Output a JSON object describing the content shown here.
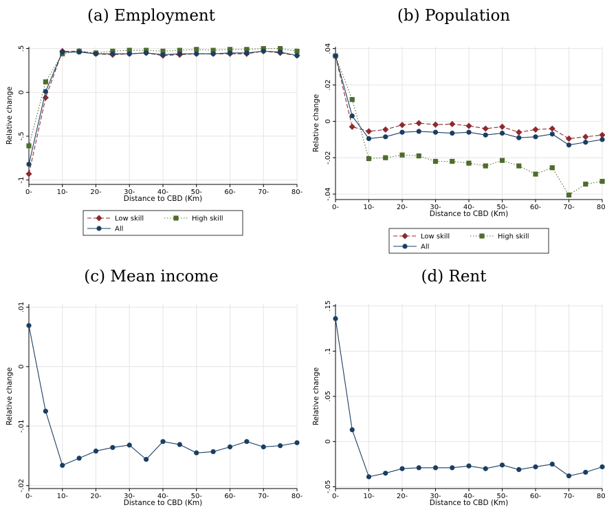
{
  "chart_data": [
    {
      "type": "line",
      "title": "(a) Employment",
      "xlabel": "Distance to CBD (Km)",
      "ylabel": "Relative change",
      "x": [
        0,
        5,
        10,
        15,
        20,
        25,
        30,
        35,
        40,
        45,
        50,
        55,
        60,
        65,
        70,
        75,
        80
      ],
      "xticks": [
        0,
        10,
        20,
        30,
        40,
        50,
        60,
        70,
        80
      ],
      "xtick_labels": [
        "0-",
        "10-",
        "20-",
        "30-",
        "40-",
        "50-",
        "60-",
        "70-",
        "80-"
      ],
      "xlim": [
        0,
        80
      ],
      "ylim": [
        -1.05,
        0.52
      ],
      "yticks": [
        0.5,
        0,
        -0.5,
        -1
      ],
      "ytick_labels": [
        ".5",
        "0",
        "-.5",
        "-1"
      ],
      "grid": true,
      "legend": "below",
      "series": [
        {
          "name": "Low skill",
          "color": "#8e2a2f",
          "marker": "diamond",
          "dash": "dash",
          "values": [
            -0.93,
            -0.06,
            0.47,
            0.47,
            0.44,
            0.43,
            0.44,
            0.45,
            0.42,
            0.43,
            0.44,
            0.44,
            0.44,
            0.44,
            0.47,
            0.45,
            0.42
          ]
        },
        {
          "name": "High skill",
          "color": "#4e6d2c",
          "marker": "square",
          "dash": "dot",
          "values": [
            -0.61,
            0.12,
            0.44,
            0.47,
            0.45,
            0.47,
            0.48,
            0.48,
            0.47,
            0.48,
            0.49,
            0.48,
            0.49,
            0.49,
            0.5,
            0.5,
            0.47
          ]
        },
        {
          "name": "All",
          "color": "#1a3e63",
          "marker": "circle",
          "dash": "solid",
          "values": [
            -0.82,
            0.01,
            0.46,
            0.46,
            0.44,
            0.44,
            0.44,
            0.45,
            0.43,
            0.44,
            0.44,
            0.44,
            0.45,
            0.45,
            0.47,
            0.46,
            0.42
          ]
        }
      ]
    },
    {
      "type": "line",
      "title": "(b) Population",
      "xlabel": "Distance to CBD (Km)",
      "ylabel": "Relative change",
      "x": [
        0,
        5,
        10,
        15,
        20,
        25,
        30,
        35,
        40,
        45,
        50,
        55,
        60,
        65,
        70,
        75,
        80
      ],
      "xticks": [
        0,
        10,
        20,
        30,
        40,
        50,
        60,
        70,
        80
      ],
      "xtick_labels": [
        "0-",
        "10-",
        "20-",
        "30-",
        "40-",
        "50-",
        "60-",
        "70-",
        "80-"
      ],
      "xlim": [
        0,
        80
      ],
      "ylim": [
        -0.043,
        0.041
      ],
      "yticks": [
        0.04,
        0.02,
        0,
        -0.02,
        -0.04
      ],
      "ytick_labels": [
        ".04",
        ".02",
        "0",
        "-.02",
        "-.04"
      ],
      "grid": true,
      "legend": "below",
      "series": [
        {
          "name": "Low skill",
          "color": "#8e2a2f",
          "marker": "diamond",
          "dash": "dash",
          "values": [
            0.036,
            -0.003,
            -0.0055,
            -0.0045,
            -0.002,
            -0.001,
            -0.0018,
            -0.0015,
            -0.0025,
            -0.004,
            -0.003,
            -0.006,
            -0.0045,
            -0.004,
            -0.0095,
            -0.0085,
            -0.0075
          ]
        },
        {
          "name": "High skill",
          "color": "#4e6d2c",
          "marker": "square",
          "dash": "dot",
          "values": [
            0.036,
            0.012,
            -0.0205,
            -0.02,
            -0.0185,
            -0.019,
            -0.022,
            -0.022,
            -0.023,
            -0.0245,
            -0.0215,
            -0.0245,
            -0.029,
            -0.0255,
            -0.0405,
            -0.0345,
            -0.033
          ]
        },
        {
          "name": "All",
          "color": "#1a3e63",
          "marker": "circle",
          "dash": "solid",
          "values": [
            0.036,
            0.003,
            -0.0095,
            -0.0085,
            -0.006,
            -0.0055,
            -0.006,
            -0.0065,
            -0.006,
            -0.0075,
            -0.0065,
            -0.009,
            -0.0085,
            -0.007,
            -0.013,
            -0.0115,
            -0.01
          ]
        }
      ]
    },
    {
      "type": "line",
      "title": "(c) Mean income",
      "xlabel": "Distance to CBD (Km)",
      "ylabel": "Relative change",
      "x": [
        0,
        5,
        10,
        15,
        20,
        25,
        30,
        35,
        40,
        45,
        50,
        55,
        60,
        65,
        70,
        75,
        80
      ],
      "xticks": [
        0,
        10,
        20,
        30,
        40,
        50,
        60,
        70,
        80
      ],
      "xtick_labels": [
        "0-",
        "10-",
        "20-",
        "30-",
        "40-",
        "50-",
        "60-",
        "70-",
        "80-"
      ],
      "xlim": [
        0,
        80
      ],
      "ylim": [
        -0.0205,
        0.0105
      ],
      "yticks": [
        0.01,
        0,
        -0.01,
        -0.02
      ],
      "ytick_labels": [
        ".01",
        "0",
        "-.01",
        "-.02"
      ],
      "grid": true,
      "series": [
        {
          "name": "",
          "color": "#1a3e63",
          "marker": "circle",
          "dash": "solid",
          "values": [
            0.0069,
            -0.0075,
            -0.0166,
            -0.0154,
            -0.0142,
            -0.0136,
            -0.0132,
            -0.0156,
            -0.0126,
            -0.0131,
            -0.0145,
            -0.0143,
            -0.0135,
            -0.0126,
            -0.0135,
            -0.0133,
            -0.0128
          ]
        }
      ]
    },
    {
      "type": "line",
      "title": "(d) Rent",
      "xlabel": "Distance to CBD (Km)",
      "ylabel": "Relative change",
      "x": [
        0,
        5,
        10,
        15,
        20,
        25,
        30,
        35,
        40,
        45,
        50,
        55,
        60,
        65,
        70,
        75,
        80
      ],
      "xticks": [
        0,
        10,
        20,
        30,
        40,
        50,
        60,
        70,
        80
      ],
      "xtick_labels": [
        "0-",
        "10-",
        "20-",
        "30-",
        "40-",
        "50-",
        "60-",
        "70-",
        "80-"
      ],
      "xlim": [
        0,
        80
      ],
      "ylim": [
        -0.052,
        0.152
      ],
      "yticks": [
        0.15,
        0.1,
        0.05,
        0,
        -0.05
      ],
      "ytick_labels": [
        ".15",
        ".1",
        ".05",
        "0",
        "-.05"
      ],
      "grid": true,
      "series": [
        {
          "name": "",
          "color": "#1a3e63",
          "marker": "circle",
          "dash": "solid",
          "values": [
            0.136,
            0.013,
            -0.039,
            -0.035,
            -0.03,
            -0.029,
            -0.029,
            -0.029,
            -0.027,
            -0.03,
            -0.026,
            -0.031,
            -0.028,
            -0.025,
            -0.038,
            -0.034,
            -0.028
          ]
        }
      ]
    }
  ]
}
